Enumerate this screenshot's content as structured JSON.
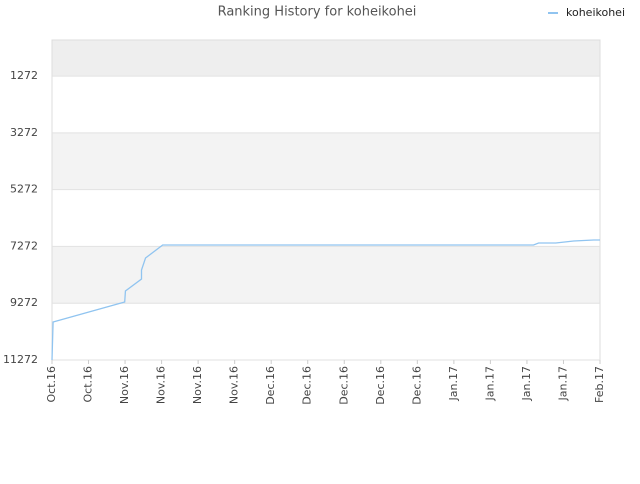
{
  "chart_data": {
    "type": "line",
    "title": "Ranking History for koheikohei",
    "x": [
      0,
      0.03,
      1.99,
      2.01,
      2.45,
      2.45,
      2.56,
      3.03,
      13.18,
      13.32,
      13.79,
      14.28,
      14.83,
      15
    ],
    "series": [
      {
        "name": "koheikohei",
        "color": "#90c4f0",
        "values": [
          11272,
          9934,
          9229,
          8842,
          8419,
          8102,
          7680,
          7222,
          7222,
          7151,
          7151,
          7081,
          7046,
          7046
        ]
      }
    ],
    "xlim": [
      0,
      15
    ],
    "xticks": [
      {
        "value": 0,
        "label": "Oct.16"
      },
      {
        "value": 1,
        "label": "Oct.16"
      },
      {
        "value": 2,
        "label": "Nov.16"
      },
      {
        "value": 3,
        "label": "Nov.16"
      },
      {
        "value": 4,
        "label": "Nov.16"
      },
      {
        "value": 5,
        "label": "Nov.16"
      },
      {
        "value": 6,
        "label": "Dec.16"
      },
      {
        "value": 7,
        "label": "Dec.16"
      },
      {
        "value": 8,
        "label": "Dec.16"
      },
      {
        "value": 9,
        "label": "Dec.16"
      },
      {
        "value": 10,
        "label": "Dec.16"
      },
      {
        "value": 11,
        "label": "Jan.17"
      },
      {
        "value": 12,
        "label": "Jan.17"
      },
      {
        "value": 13,
        "label": "Jan.17"
      },
      {
        "value": 14,
        "label": "Jan.17"
      },
      {
        "value": 15,
        "label": "Feb.17"
      }
    ],
    "ylim": [
      11272,
      1
    ],
    "yticks": [
      1272,
      3272,
      5272,
      7272,
      9272,
      11272
    ],
    "legend": "top-right"
  }
}
